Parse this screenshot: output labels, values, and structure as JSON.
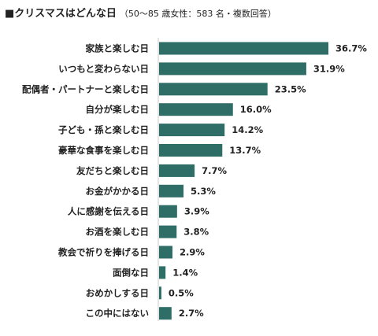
{
  "chart_data": {
    "type": "bar",
    "orientation": "horizontal",
    "title": "■クリスマスはどんな日",
    "subtitle": "（50〜85 歳女性：583 名・複数回答）",
    "categories": [
      "家族と楽しむ日",
      "いつもと変わらない日",
      "配偶者・パートナーと楽しむ日",
      "自分が楽しむ日",
      "子ども・孫と楽しむ日",
      "豪華な食事を楽しむ日",
      "友だちと楽しむ日",
      "お金がかかる日",
      "人に感謝を伝える日",
      "お酒を楽しむ日",
      "教会で祈りを捧げる日",
      "面倒な日",
      "おめかしする日",
      "この中にはない"
    ],
    "values": [
      36.7,
      31.9,
      23.5,
      16.0,
      14.2,
      13.7,
      7.7,
      5.3,
      3.9,
      3.8,
      2.9,
      1.4,
      0.5,
      2.7
    ],
    "value_labels": [
      "36.7%",
      "31.9%",
      "23.5%",
      "16.0%",
      "14.2%",
      "13.7%",
      "7.7%",
      "5.3%",
      "3.9%",
      "3.8%",
      "2.9%",
      "1.4%",
      "0.5%",
      "2.7%"
    ],
    "bar_color": "#2e6e67",
    "axis_color": "#c8c8c8",
    "xlim": [
      0,
      40
    ]
  }
}
